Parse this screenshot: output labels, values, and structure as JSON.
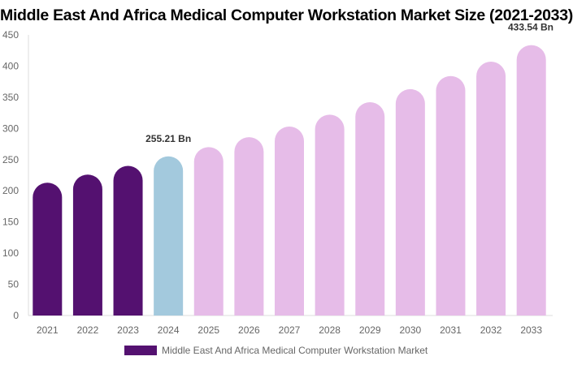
{
  "chart_data": {
    "type": "bar",
    "title": "Middle East And Africa Medical Computer Workstation Market Size (2021-2033)",
    "categories": [
      "2021",
      "2022",
      "2023",
      "2024",
      "2025",
      "2026",
      "2027",
      "2028",
      "2029",
      "2030",
      "2031",
      "2032",
      "2033"
    ],
    "series": [
      {
        "name": "Middle East And Africa Medical Computer Workstation Market",
        "values": [
          213,
          226,
          240,
          255.21,
          270,
          286,
          303,
          322,
          342,
          363,
          384,
          407,
          433.54
        ]
      }
    ],
    "data_labels": [
      {
        "category": "2024",
        "text": "255.21 Bn"
      },
      {
        "category": "2033",
        "text": "433.54 Bn"
      }
    ],
    "yticks": [
      "0",
      "50",
      "100",
      "150",
      "200",
      "250",
      "300",
      "350",
      "400",
      "450"
    ],
    "ylim": [
      0,
      450
    ],
    "xlabel": "",
    "ylabel": "",
    "grid": false,
    "legend": "bottom",
    "colors": {
      "historical": "#541170",
      "current": "#a3c9dd",
      "forecast": "#e6bce8"
    }
  }
}
